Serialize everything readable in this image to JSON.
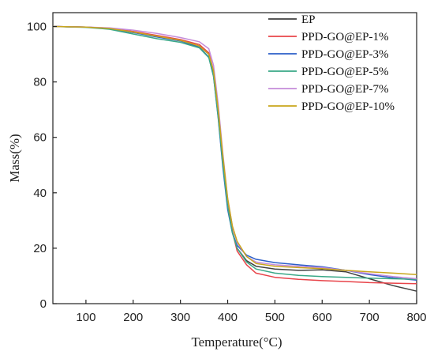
{
  "chart_data": {
    "type": "line",
    "xlabel": "Temperature(°C)",
    "ylabel": "Mass(%)",
    "xlim": [
      30,
      800
    ],
    "ylim": [
      0,
      105
    ],
    "xticks": [
      100,
      200,
      300,
      400,
      500,
      600,
      700,
      800
    ],
    "yticks": [
      0,
      20,
      40,
      60,
      80,
      100
    ],
    "grid": false,
    "legend_position": "top-right",
    "series": [
      {
        "name": "EP",
        "color": "#404040",
        "x": [
          30,
          100,
          150,
          200,
          250,
          300,
          340,
          360,
          370,
          380,
          390,
          400,
          410,
          420,
          440,
          460,
          500,
          550,
          600,
          650,
          700,
          750,
          800
        ],
        "y": [
          100,
          99.8,
          99.3,
          98,
          96.5,
          95,
          93,
          90,
          83,
          68,
          50,
          35,
          26,
          20,
          15.5,
          13.5,
          12.5,
          12,
          12.2,
          11.5,
          9,
          6.5,
          4.5
        ]
      },
      {
        "name": "PPD-GO@EP-1%",
        "color": "#e8444a",
        "x": [
          30,
          100,
          150,
          200,
          250,
          300,
          340,
          360,
          370,
          380,
          390,
          400,
          410,
          420,
          440,
          460,
          500,
          550,
          600,
          650,
          700,
          750,
          800
        ],
        "y": [
          100,
          99.8,
          99.4,
          98.2,
          96.8,
          95.3,
          93.5,
          90.5,
          84,
          70,
          52,
          36,
          26,
          19,
          14,
          11,
          9.5,
          8.8,
          8.3,
          8,
          7.6,
          7.4,
          7.2
        ]
      },
      {
        "name": "PPD-GO@EP-3%",
        "color": "#2c5fc8",
        "x": [
          30,
          100,
          150,
          200,
          250,
          300,
          340,
          360,
          370,
          380,
          390,
          400,
          410,
          420,
          440,
          460,
          500,
          550,
          600,
          650,
          700,
          750,
          800
        ],
        "y": [
          100,
          99.8,
          99.2,
          97.8,
          96.2,
          94.8,
          92.5,
          89,
          82,
          67,
          49,
          34,
          25.5,
          21,
          17.5,
          16,
          14.8,
          14,
          13.3,
          12,
          10.5,
          9.3,
          8.5
        ]
      },
      {
        "name": "PPD-GO@EP-5%",
        "color": "#3aa887",
        "x": [
          30,
          100,
          150,
          200,
          250,
          300,
          340,
          360,
          370,
          380,
          390,
          400,
          410,
          420,
          440,
          460,
          500,
          550,
          600,
          650,
          700,
          750,
          800
        ],
        "y": [
          100,
          99.7,
          99,
          97.3,
          95.6,
          94.3,
          92.3,
          88.8,
          82,
          67.5,
          50,
          35,
          25.5,
          20,
          15,
          12.5,
          11,
          10.2,
          9.8,
          9.5,
          9.2,
          9,
          8.8
        ]
      },
      {
        "name": "PPD-GO@EP-7%",
        "color": "#c58bd9",
        "x": [
          30,
          100,
          150,
          200,
          250,
          300,
          340,
          360,
          370,
          380,
          390,
          400,
          410,
          420,
          440,
          460,
          500,
          550,
          600,
          650,
          700,
          750,
          800
        ],
        "y": [
          100,
          99.8,
          99.5,
          98.7,
          97.5,
          96,
          94.5,
          92,
          86,
          72,
          54,
          38,
          28,
          22,
          17,
          15,
          14,
          13.5,
          13,
          12,
          10.8,
          9.8,
          9
        ]
      },
      {
        "name": "PPD-GO@EP-10%",
        "color": "#c9a61c",
        "x": [
          30,
          100,
          150,
          200,
          250,
          300,
          340,
          360,
          370,
          380,
          390,
          400,
          410,
          420,
          440,
          460,
          500,
          550,
          600,
          650,
          700,
          750,
          800
        ],
        "y": [
          100,
          99.8,
          99.3,
          98,
          96.5,
          95,
          93,
          90,
          84,
          70,
          53,
          38,
          28,
          22.5,
          17,
          14.5,
          13.5,
          13,
          12.6,
          12,
          11.5,
          11,
          10.5
        ]
      }
    ]
  }
}
